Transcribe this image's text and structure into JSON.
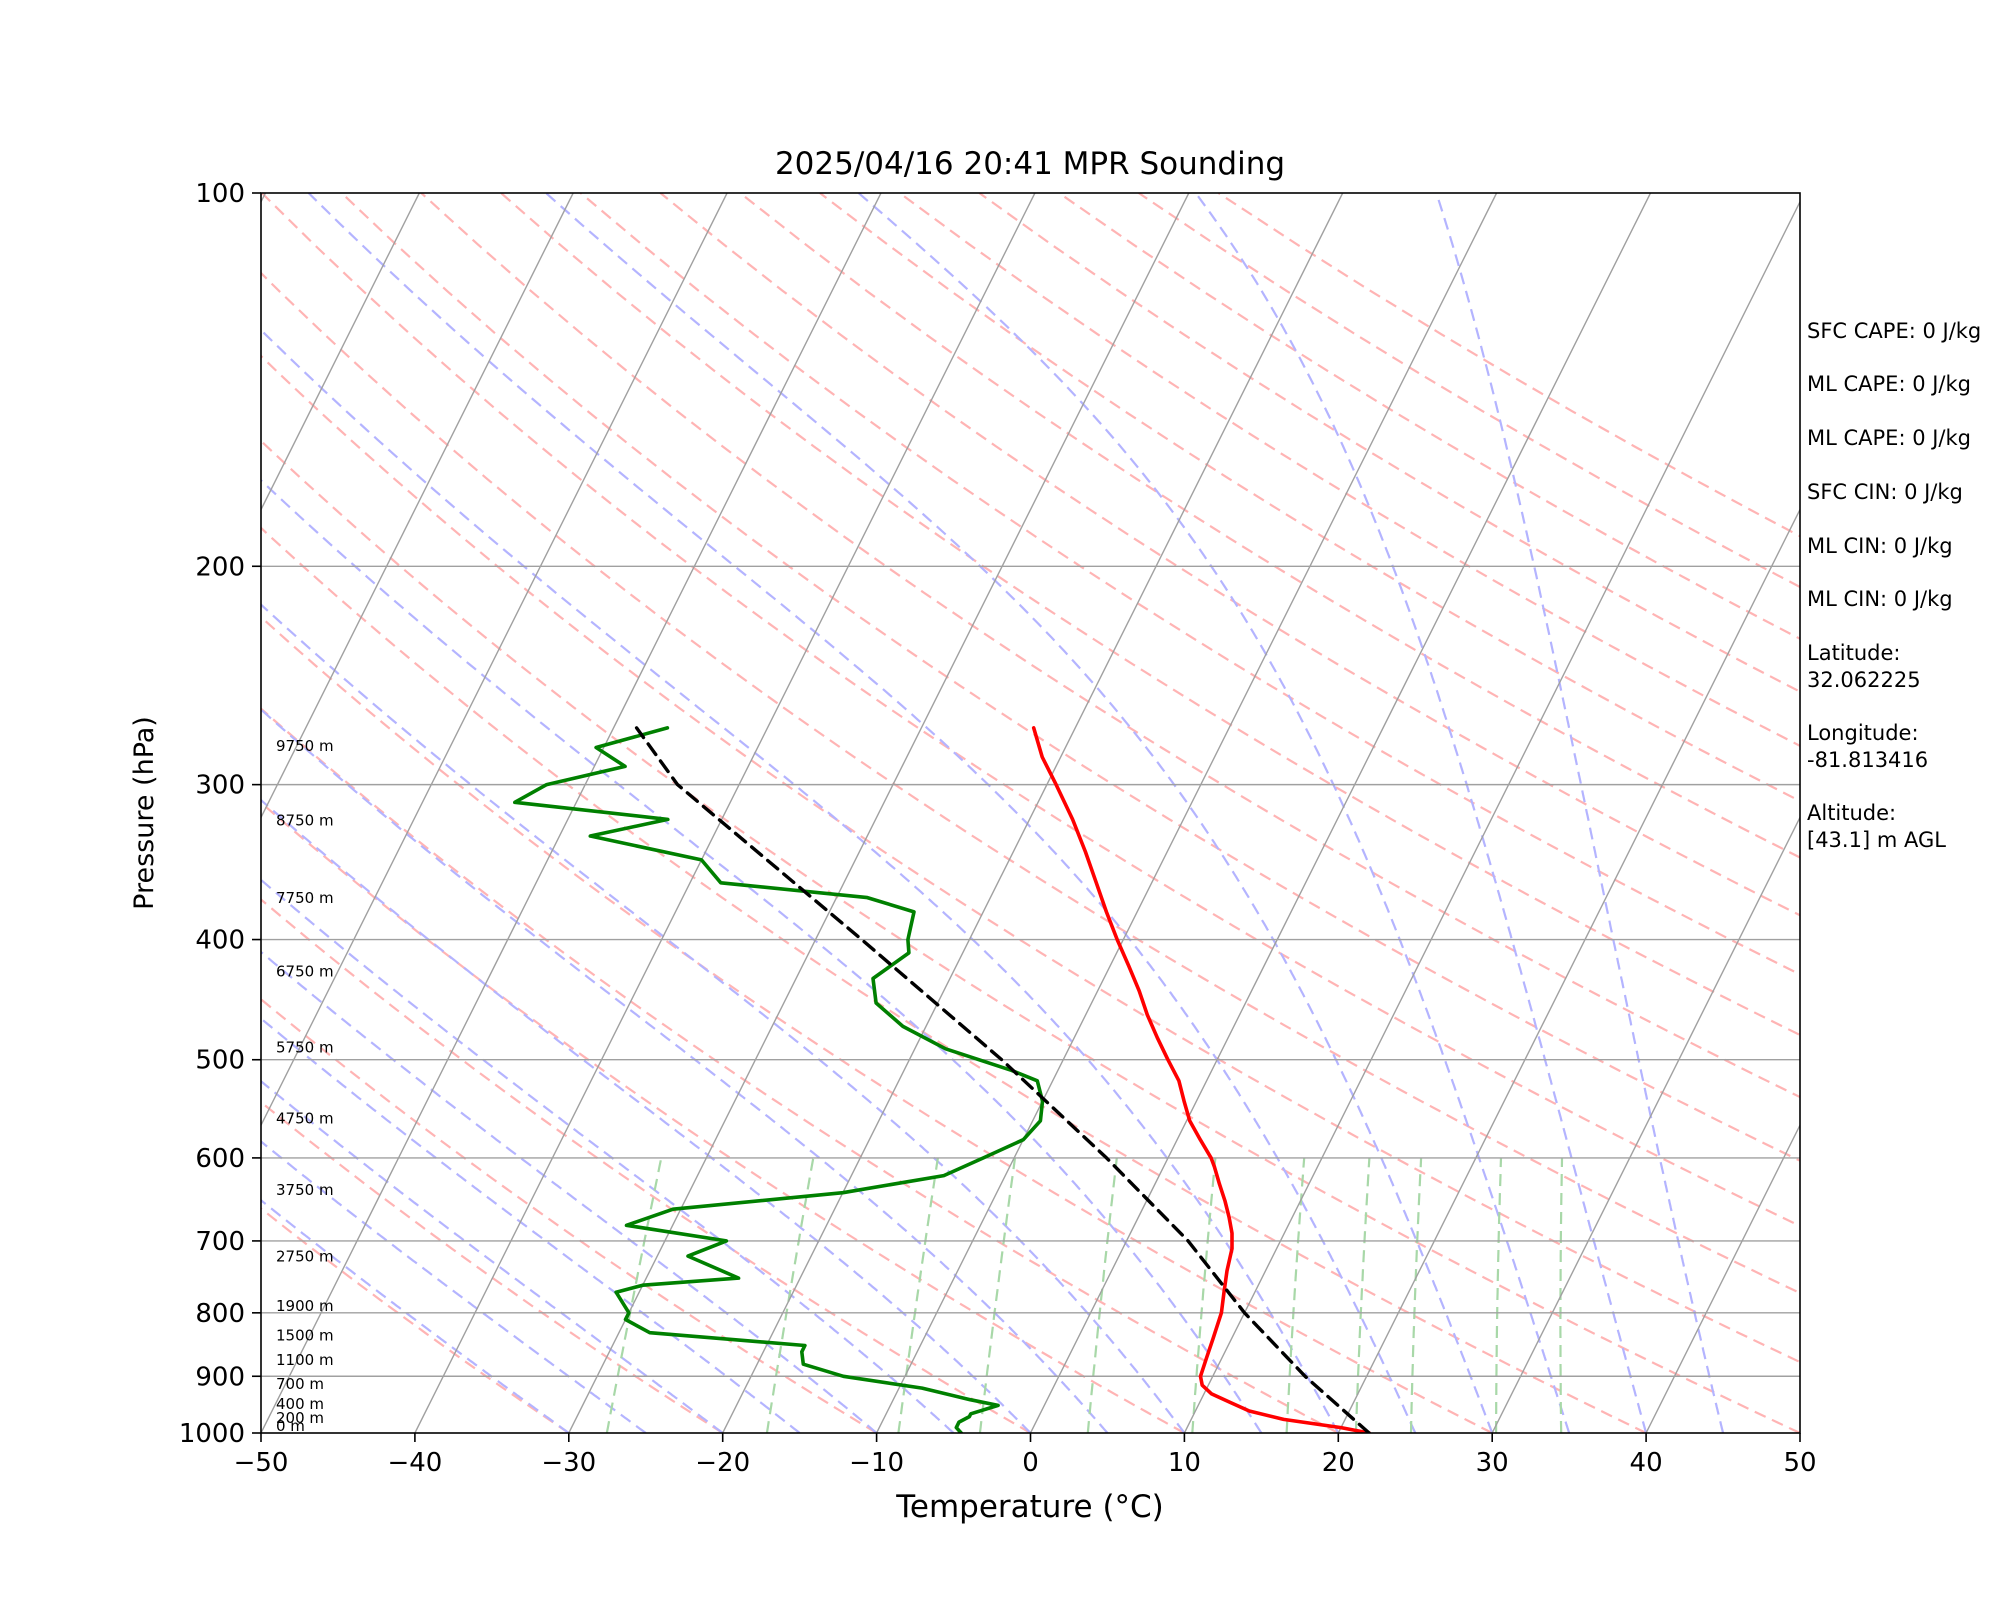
{
  "chart_data": {
    "type": "line",
    "title": "2025/04/16 20:41 MPR Sounding",
    "xlabel": "Temperature (°C)",
    "ylabel": "Pressure (hPa)",
    "xlim": [
      -50,
      50
    ],
    "ylim": [
      1000,
      100
    ],
    "y_scale": "log",
    "grid": true,
    "x_ticks": [
      "−50",
      "−40",
      "−30",
      "−20",
      "−10",
      "0",
      "10",
      "20",
      "30",
      "40",
      "50"
    ],
    "y_ticks": [
      "100",
      "200",
      "300",
      "400",
      "500",
      "600",
      "700",
      "800",
      "900",
      "1000"
    ],
    "series": [
      {
        "kind": "temperature",
        "color": "#ff0000",
        "points": [
          [
            1000,
            22
          ],
          [
            990,
            20
          ],
          [
            975,
            16
          ],
          [
            960,
            13.5
          ],
          [
            945,
            12
          ],
          [
            930,
            10.5
          ],
          [
            915,
            9.6
          ],
          [
            900,
            9.2
          ],
          [
            870,
            9
          ],
          [
            840,
            8.8
          ],
          [
            800,
            8.5
          ],
          [
            770,
            8
          ],
          [
            740,
            7.5
          ],
          [
            710,
            7.1
          ],
          [
            690,
            6.6
          ],
          [
            670,
            5.9
          ],
          [
            650,
            5.1
          ],
          [
            630,
            4.2
          ],
          [
            610,
            3.3
          ],
          [
            600,
            2.8
          ],
          [
            580,
            1.5
          ],
          [
            560,
            0.2
          ],
          [
            540,
            -0.8
          ],
          [
            520,
            -1.8
          ],
          [
            500,
            -3.2
          ],
          [
            480,
            -4.6
          ],
          [
            460,
            -6
          ],
          [
            440,
            -7.3
          ],
          [
            420,
            -8.8
          ],
          [
            400,
            -10.4
          ],
          [
            380,
            -12
          ],
          [
            360,
            -13.6
          ],
          [
            340,
            -15.3
          ],
          [
            320,
            -17.2
          ],
          [
            300,
            -19.4
          ],
          [
            285,
            -21.2
          ],
          [
            270,
            -22.7
          ]
        ]
      },
      {
        "kind": "dewpoint",
        "color": "#008000",
        "points": [
          [
            1000,
            -4.5
          ],
          [
            990,
            -5
          ],
          [
            980,
            -5
          ],
          [
            970,
            -4.5
          ],
          [
            965,
            -4.5
          ],
          [
            950,
            -3
          ],
          [
            940,
            -5
          ],
          [
            920,
            -8.5
          ],
          [
            900,
            -14
          ],
          [
            880,
            -17
          ],
          [
            860,
            -17.5
          ],
          [
            850,
            -17.5
          ],
          [
            830,
            -28
          ],
          [
            810,
            -30
          ],
          [
            800,
            -30
          ],
          [
            770,
            -31.5
          ],
          [
            760,
            -30
          ],
          [
            750,
            -24
          ],
          [
            720,
            -28
          ],
          [
            700,
            -26
          ],
          [
            680,
            -33
          ],
          [
            660,
            -30.5
          ],
          [
            640,
            -20
          ],
          [
            620,
            -14
          ],
          [
            600,
            -12
          ],
          [
            580,
            -10
          ],
          [
            560,
            -9.5
          ],
          [
            540,
            -10
          ],
          [
            520,
            -11
          ],
          [
            510,
            -13
          ],
          [
            490,
            -18
          ],
          [
            470,
            -21.5
          ],
          [
            450,
            -24
          ],
          [
            430,
            -25
          ],
          [
            410,
            -23.5
          ],
          [
            400,
            -24
          ],
          [
            380,
            -24.5
          ],
          [
            370,
            -28
          ],
          [
            360,
            -38
          ],
          [
            345,
            -40
          ],
          [
            330,
            -48
          ],
          [
            320,
            -43.5
          ],
          [
            310,
            -54
          ],
          [
            300,
            -52.5
          ],
          [
            290,
            -48
          ],
          [
            280,
            -50.5
          ],
          [
            270,
            -46.5
          ]
        ]
      },
      {
        "kind": "parcel",
        "color": "#000000",
        "style": "dashed",
        "points": [
          [
            1000,
            22
          ],
          [
            900,
            16
          ],
          [
            800,
            10
          ],
          [
            700,
            4
          ],
          [
            600,
            -4
          ],
          [
            500,
            -14
          ],
          [
            400,
            -27
          ],
          [
            300,
            -44
          ],
          [
            270,
            -48.5
          ]
        ]
      }
    ],
    "height_labels": [
      {
        "text": "0 m",
        "p": 1000
      },
      {
        "text": "200 m",
        "p": 985
      },
      {
        "text": "400 m",
        "p": 960
      },
      {
        "text": "700 m",
        "p": 925
      },
      {
        "text": "1100 m",
        "p": 885
      },
      {
        "text": "1500 m",
        "p": 845
      },
      {
        "text": "1900 m",
        "p": 800
      },
      {
        "text": "2750 m",
        "p": 730
      },
      {
        "text": "3750 m",
        "p": 645
      },
      {
        "text": "4750 m",
        "p": 565
      },
      {
        "text": "5750 m",
        "p": 495
      },
      {
        "text": "6750 m",
        "p": 430
      },
      {
        "text": "7750 m",
        "p": 375
      },
      {
        "text": "8750 m",
        "p": 325
      },
      {
        "text": "9750 m",
        "p": 283
      }
    ],
    "background": {
      "isotherms": {
        "color": "#a0a0a0",
        "values": [
          -110,
          -100,
          -90,
          -80,
          -70,
          -60,
          -50,
          -40,
          -30,
          -20,
          -10,
          0,
          10,
          20,
          30,
          40,
          50
        ]
      },
      "dry_adiabats": {
        "color": "#ffb4b4",
        "style": "dashed"
      },
      "moist_adiabats": {
        "color": "#b4b4ff",
        "style": "dashed"
      },
      "mixing_ratio": {
        "color": "#a8d8a8",
        "style": "dashed"
      }
    }
  },
  "stats": {
    "sfc_cape": "SFC CAPE: 0 J/kg",
    "ml_cape_1": "ML CAPE: 0 J/kg",
    "ml_cape_2": "ML CAPE: 0 J/kg",
    "sfc_cin": "SFC CIN: 0 J/kg",
    "ml_cin_1": "ML CIN: 0 J/kg",
    "ml_cin_2": "ML CIN: 0 J/kg",
    "latitude": "Latitude:\n32.062225",
    "longitude": "Longitude:\n-81.813416",
    "altitude": "Altitude:\n[43.1] m AGL"
  }
}
